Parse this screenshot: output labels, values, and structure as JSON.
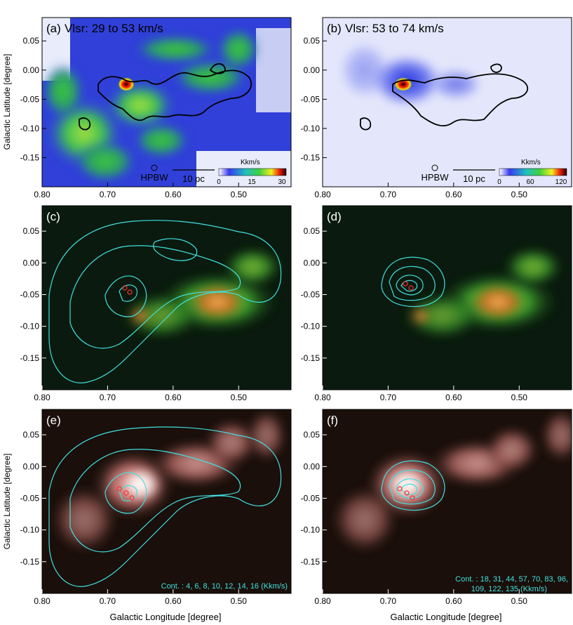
{
  "figure": {
    "x_axis_label": "Galactic Longitude [degree]",
    "y_axis_label": "Galactic Latitude [degree]",
    "x_ticks": [
      "0.80",
      "0.70",
      "0.60",
      "0.50"
    ],
    "y_ticks": [
      "0.05",
      "0.00",
      "-0.05",
      "-0.10",
      "-0.15"
    ]
  },
  "panels": [
    {
      "id": "a",
      "tag": "(a)",
      "title": "Vlsr: 29 to 53 km/s",
      "colorbar": {
        "unit": "Kkm/s",
        "ticks": [
          "0",
          "15",
          "30"
        ]
      },
      "beam_label": "HPBW",
      "scale_label": "10 pc"
    },
    {
      "id": "b",
      "tag": "(b)",
      "title": "Vlsr: 53 to 74 km/s",
      "colorbar": {
        "unit": "Kkm/s",
        "ticks": [
          "0",
          "60",
          "120"
        ]
      },
      "beam_label": "HPBW",
      "scale_label": "10 pc"
    },
    {
      "id": "c",
      "tag": "(c)"
    },
    {
      "id": "d",
      "tag": "(d)"
    },
    {
      "id": "e",
      "tag": "(e)",
      "contour_note": "Cont. : 4, 6, 8, 10, 12, 14, 16 (Kkm/s)"
    },
    {
      "id": "f",
      "tag": "(f)",
      "contour_note_lines": [
        "Cont. : 18, 31, 44, 57, 70, 83, 96,",
        "109, 122, 135 (Kkm/s)"
      ]
    }
  ],
  "colors": {
    "contour": "#40e0e0",
    "black_contour": "#000000",
    "spitzer_bg": "#0a1a0e",
    "radio_bg": "#1a0f0a"
  },
  "chart_data": [
    {
      "type": "heatmap",
      "title": "Vlsr: 29 to 53 km/s",
      "xlabel": "",
      "ylabel": "Galactic Latitude [degree]",
      "xlim": [
        0.8,
        0.42
      ],
      "ylim": [
        -0.2,
        0.09
      ],
      "colorbar_range": [
        0,
        30
      ],
      "colorbar_unit": "Kkm/s",
      "colormap": "rainbow"
    },
    {
      "type": "heatmap",
      "title": "Vlsr: 53 to 74 km/s",
      "xlabel": "",
      "ylabel": "",
      "xlim": [
        0.8,
        0.42
      ],
      "ylim": [
        -0.2,
        0.09
      ],
      "colorbar_range": [
        0,
        120
      ],
      "colorbar_unit": "Kkm/s",
      "colormap": "rainbow"
    },
    {
      "type": "heatmap",
      "title": "",
      "xlabel": "",
      "ylabel": "Galactic Latitude [degree]",
      "xlim": [
        0.8,
        0.42
      ],
      "ylim": [
        -0.2,
        0.09
      ],
      "image": "infrared composite with cyan contours"
    },
    {
      "type": "heatmap",
      "title": "",
      "xlabel": "",
      "ylabel": "",
      "xlim": [
        0.8,
        0.42
      ],
      "ylim": [
        -0.2,
        0.09
      ],
      "image": "infrared composite with cyan contours"
    },
    {
      "type": "heatmap",
      "title": "",
      "xlabel": "Galactic Longitude [degree]",
      "ylabel": "Galactic Latitude [degree]",
      "xlim": [
        0.8,
        0.42
      ],
      "ylim": [
        -0.2,
        0.09
      ],
      "contour_levels": [
        4,
        6,
        8,
        10,
        12,
        14,
        16
      ],
      "contour_unit": "Kkm/s"
    },
    {
      "type": "heatmap",
      "title": "",
      "xlabel": "Galactic Longitude [degree]",
      "ylabel": "",
      "xlim": [
        0.8,
        0.42
      ],
      "ylim": [
        -0.2,
        0.09
      ],
      "contour_levels": [
        18,
        31,
        44,
        57,
        70,
        83,
        96,
        109,
        122,
        135
      ],
      "contour_unit": "Kkm/s"
    }
  ]
}
